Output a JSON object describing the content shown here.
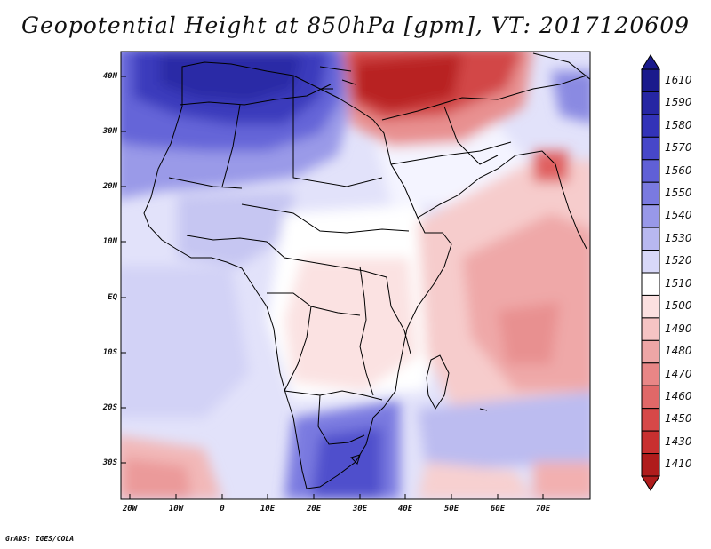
{
  "title": "Geopotential Height at 850hPa [gpm], VT: 2017120609",
  "credit": "GrADS: IGES/COLA",
  "lat_labels": [
    "40N",
    "30N",
    "20N",
    "10N",
    "EQ",
    "10S",
    "20S",
    "30S"
  ],
  "lon_labels": [
    "20W",
    "10W",
    "0",
    "10E",
    "20E",
    "30E",
    "40E",
    "50E",
    "60E",
    "70E"
  ],
  "colorbar": {
    "levels": [
      {
        "label": "1610",
        "color": "#1a1a8c"
      },
      {
        "label": "1590",
        "color": "#2626a3"
      },
      {
        "label": "1580",
        "color": "#3333b8"
      },
      {
        "label": "1570",
        "color": "#4747c9"
      },
      {
        "label": "1560",
        "color": "#6060d6"
      },
      {
        "label": "1550",
        "color": "#7a7ae0"
      },
      {
        "label": "1540",
        "color": "#9898e8"
      },
      {
        "label": "1530",
        "color": "#b8b8f0"
      },
      {
        "label": "1520",
        "color": "#d8d8f8"
      },
      {
        "label": "1510",
        "color": "#ffffff"
      },
      {
        "label": "1500",
        "color": "#fbe0e0"
      },
      {
        "label": "1490",
        "color": "#f5c4c4"
      },
      {
        "label": "1480",
        "color": "#eea6a6"
      },
      {
        "label": "1470",
        "color": "#e88686"
      },
      {
        "label": "1460",
        "color": "#e06868"
      },
      {
        "label": "1450",
        "color": "#d64848"
      },
      {
        "label": "1430",
        "color": "#c83030"
      },
      {
        "label": "1410",
        "color": "#b01c1c"
      }
    ]
  }
}
